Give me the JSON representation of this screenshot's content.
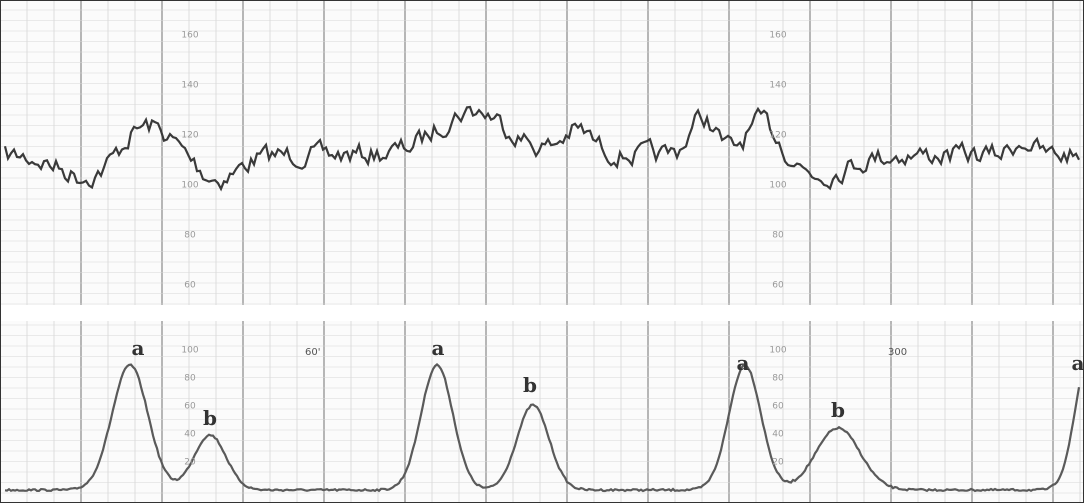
{
  "fhr_scale": {
    "labels": [
      "160",
      "140",
      "120",
      "100",
      "80",
      "60"
    ]
  },
  "toco_scale": {
    "labels": [
      "100",
      "80",
      "60",
      "40",
      "20"
    ]
  },
  "time_labels": [
    "60'",
    "300"
  ],
  "markers": [
    "a",
    "b",
    "a",
    "b",
    "a",
    "b",
    "a"
  ]
}
